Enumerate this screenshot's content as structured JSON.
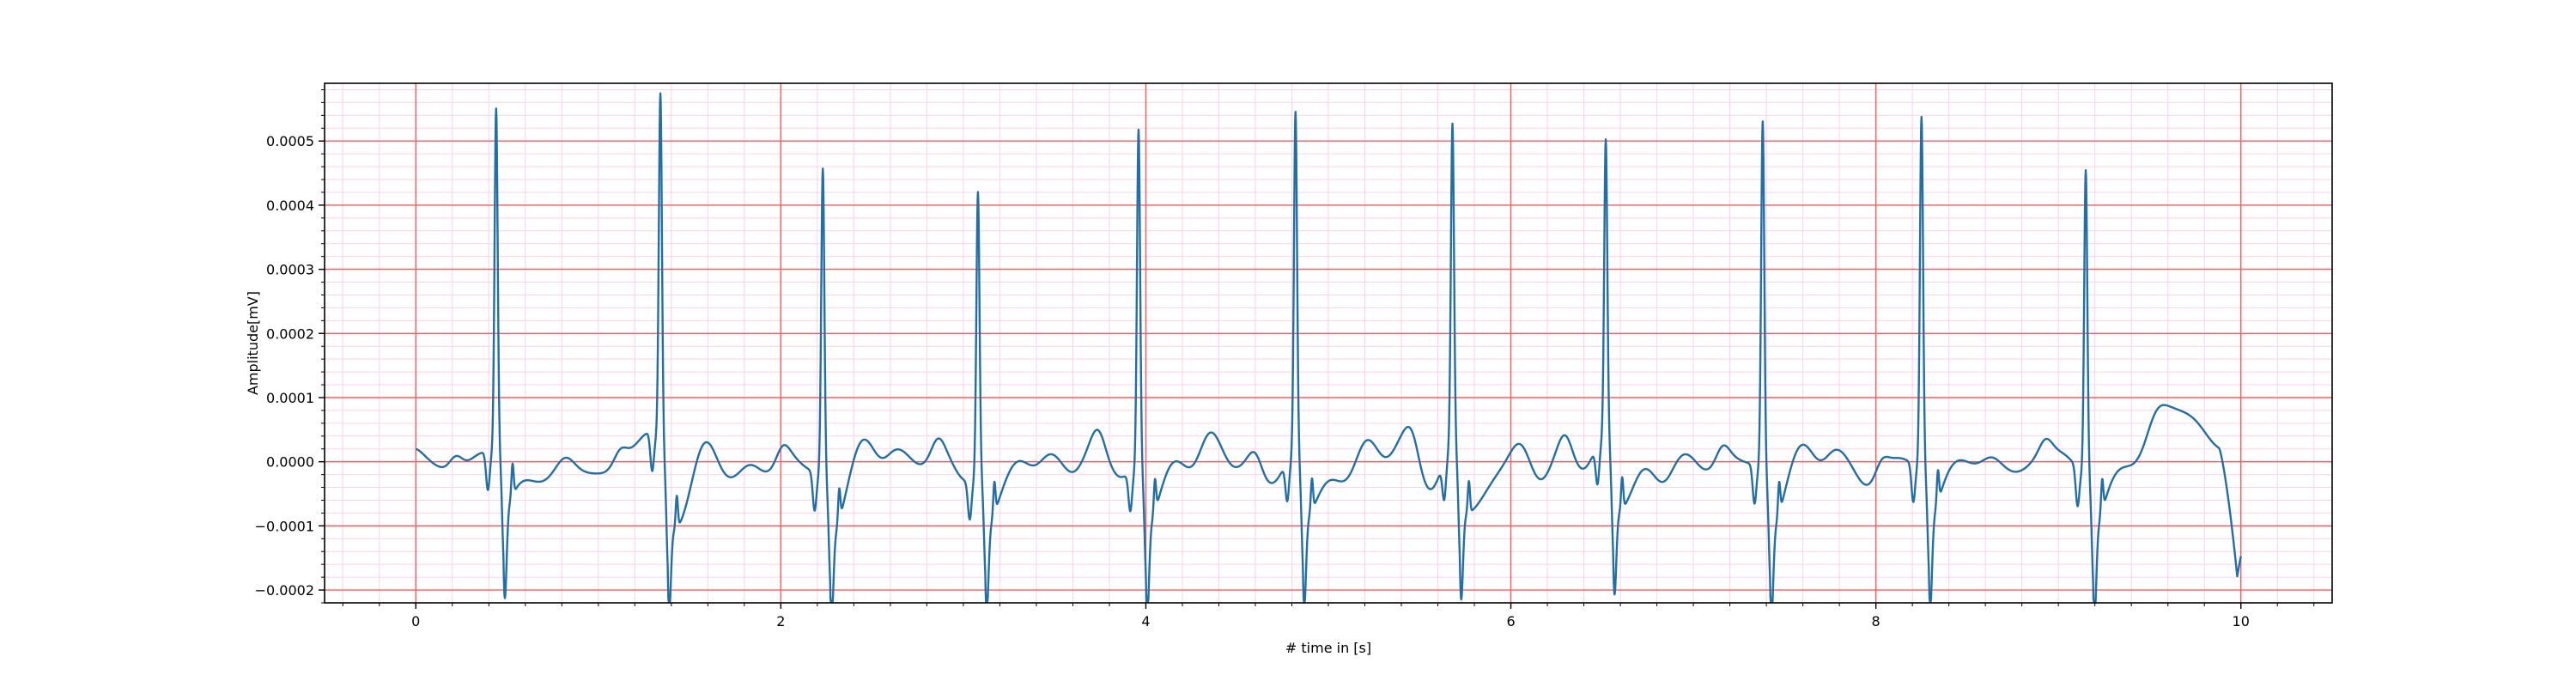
{
  "chart_data": {
    "type": "line",
    "title": "",
    "xlabel": "# time in [s]",
    "ylabel": "Amplitude[mV]",
    "xlim": [
      -0.5,
      10.5
    ],
    "ylim": [
      -0.00022,
      0.00059
    ],
    "xticks": [
      0,
      2,
      4,
      6,
      8,
      10
    ],
    "xtick_labels": [
      "0",
      "2",
      "4",
      "6",
      "8",
      "10"
    ],
    "yticks": [
      -0.0002,
      -0.0001,
      0.0,
      0.0001,
      0.0002,
      0.0003,
      0.0004,
      0.0005
    ],
    "ytick_labels": [
      "−0.0002",
      "−0.0001",
      "0.0000",
      "0.0001",
      "0.0002",
      "0.0003",
      "0.0004",
      "0.0005"
    ],
    "grid": {
      "major": true,
      "minor": true,
      "major_color": "#ff5a5a",
      "minor_color": "#ffd0ea",
      "x_minor_step": 0.2,
      "y_minor_step": 2e-05
    },
    "line_color": "#1f6fa8",
    "beats": [
      {
        "t": 0.44,
        "peak": 0.000535,
        "trough": -0.000183
      },
      {
        "t": 1.34,
        "peak": 0.000545,
        "trough": -0.00018
      },
      {
        "t": 2.23,
        "peak": 0.00048,
        "trough": -0.000175
      },
      {
        "t": 3.08,
        "peak": 0.000445,
        "trough": -0.000172
      },
      {
        "t": 3.96,
        "peak": 0.00053,
        "trough": -0.000182
      },
      {
        "t": 4.82,
        "peak": 0.000538,
        "trough": -0.00018
      },
      {
        "t": 5.68,
        "peak": 0.000505,
        "trough": -0.00018
      },
      {
        "t": 6.52,
        "peak": 0.000468,
        "trough": -0.000176
      },
      {
        "t": 7.38,
        "peak": 0.000543,
        "trough": -0.00018
      },
      {
        "t": 8.25,
        "peak": 0.000545,
        "trough": -0.000178
      },
      {
        "t": 9.15,
        "peak": 0.000475,
        "trough": -0.000182
      }
    ],
    "signal_end": {
      "t": 10.0,
      "y": -0.000185
    }
  }
}
